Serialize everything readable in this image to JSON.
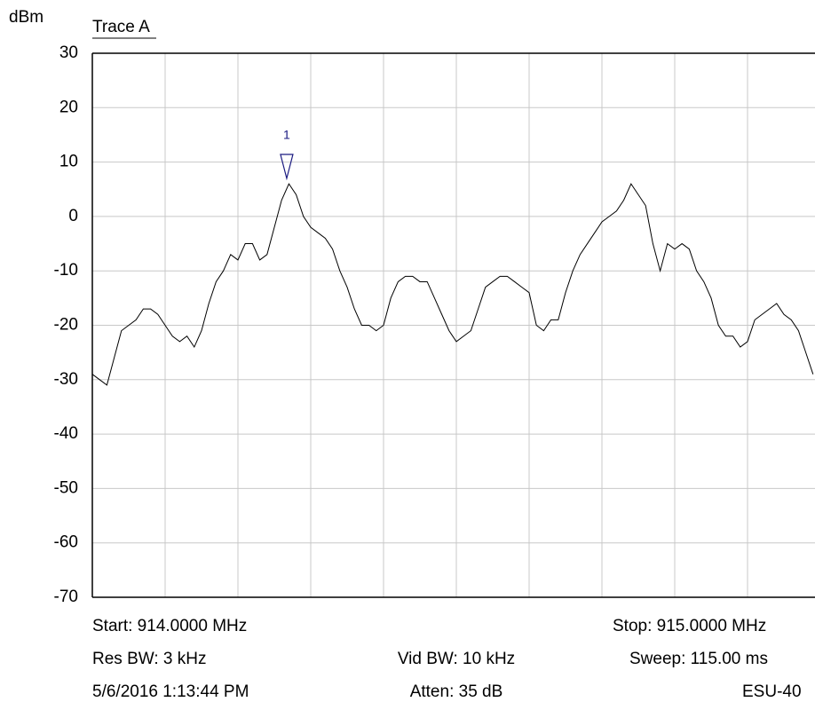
{
  "chart_data": {
    "type": "line",
    "title": "Trace A",
    "y_label": "dBm",
    "xlim": [
      914,
      915
    ],
    "ylim": [
      -70,
      30
    ],
    "yticks": [
      30,
      20,
      10,
      0,
      -10,
      -20,
      -30,
      -40,
      -50,
      -60,
      -70
    ],
    "xgrid": [
      914.1,
      914.2,
      914.3,
      914.4,
      914.5,
      914.6,
      914.7,
      914.8,
      914.9
    ],
    "grid": true,
    "series": [
      {
        "color": "#000000",
        "x": [
          914,
          914.01,
          914.02,
          914.03,
          914.04,
          914.05,
          914.06,
          914.07,
          914.08,
          914.09,
          914.1,
          914.11,
          914.12,
          914.13,
          914.14,
          914.15,
          914.16,
          914.17,
          914.18,
          914.19,
          914.2,
          914.21,
          914.22,
          914.23,
          914.24,
          914.25,
          914.26,
          914.27,
          914.28,
          914.29,
          914.3,
          914.31,
          914.32,
          914.33,
          914.34,
          914.35,
          914.36,
          914.37,
          914.38,
          914.39,
          914.4,
          914.41,
          914.42,
          914.43,
          914.44,
          914.45,
          914.46,
          914.47,
          914.48,
          914.49,
          914.5,
          914.51,
          914.52,
          914.53,
          914.54,
          914.55,
          914.56,
          914.57,
          914.58,
          914.59,
          914.6,
          914.61,
          914.62,
          914.63,
          914.64,
          914.65,
          914.66,
          914.67,
          914.68,
          914.69,
          914.7,
          914.71,
          914.72,
          914.73,
          914.74,
          914.75,
          914.76,
          914.77,
          914.78,
          914.79,
          914.8,
          914.81,
          914.82,
          914.83,
          914.84,
          914.85,
          914.86,
          914.87,
          914.88,
          914.89,
          914.9,
          914.91,
          914.92,
          914.93,
          914.94,
          914.95,
          914.96,
          914.97,
          914.98,
          914.99
        ],
        "values": [
          -29,
          -30,
          -31,
          -26,
          -21,
          -20,
          -19,
          -17,
          -17,
          -18,
          -20,
          -22,
          -23,
          -22,
          -24,
          -21,
          -16,
          -12,
          -10,
          -7,
          -8,
          -5,
          -5,
          -8,
          -7,
          -2,
          3,
          6,
          4,
          0,
          -2,
          -3,
          -4,
          -6,
          -10,
          -13,
          -17,
          -20,
          -20,
          -21,
          -20,
          -15,
          -12,
          -11,
          -11,
          -12,
          -12,
          -15,
          -18,
          -21,
          -23,
          -22,
          -21,
          -17,
          -13,
          -12,
          -11,
          -11,
          -12,
          -13,
          -14,
          -20,
          -21,
          -19,
          -19,
          -14,
          -10,
          -7,
          -5,
          -3,
          -1,
          0,
          1,
          3,
          6,
          4,
          2,
          -5,
          -10,
          -5,
          -6,
          -5,
          -6,
          -10,
          -12,
          -15,
          -20,
          -22,
          -22,
          -24,
          -23,
          -19,
          -18,
          -17,
          -16,
          -18,
          -19,
          -21,
          -25,
          -29
        ]
      }
    ],
    "markers": [
      {
        "label": "1",
        "x": 914.267,
        "y": 7
      }
    ],
    "footer": {
      "start": "Start: 914.0000 MHz",
      "stop": "Stop: 915.0000 MHz",
      "res_bw": "Res BW: 3 kHz",
      "vid_bw": "Vid BW: 10 kHz",
      "sweep": "Sweep: 115.00 ms",
      "timestamp": "5/6/2016 1:13:44 PM",
      "atten": "Atten: 35 dB",
      "device": "ESU-40"
    }
  }
}
